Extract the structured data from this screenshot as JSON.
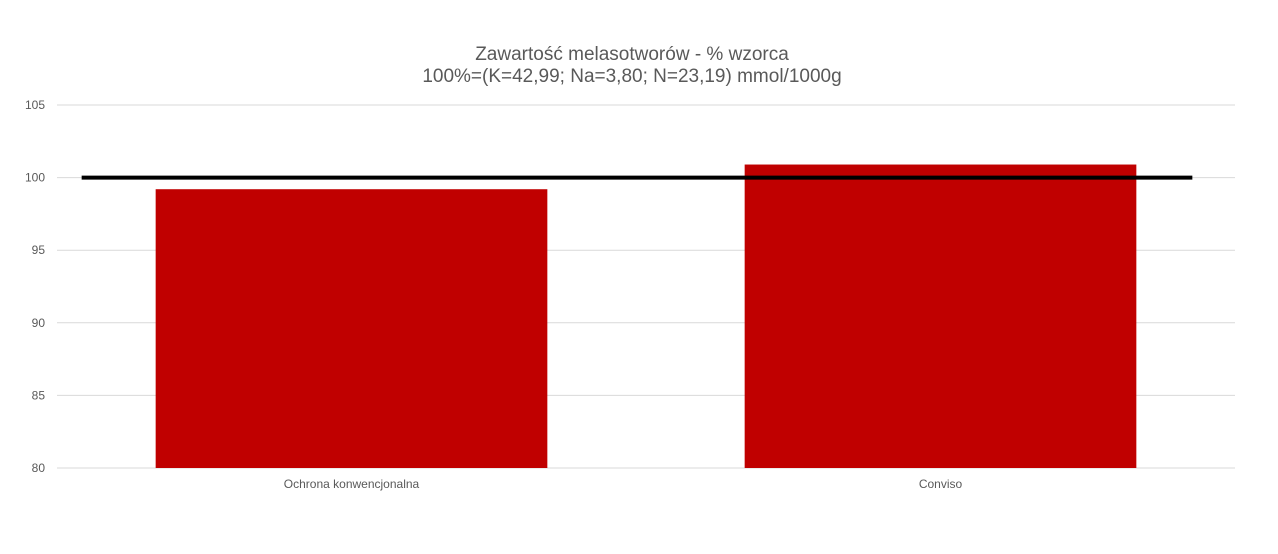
{
  "chart_data": {
    "type": "bar",
    "title": "Zawartość melasotworów - % wzorca",
    "subtitle": "100%=(K=42,99; Na=3,80; N=23,19) mmol/1000g",
    "categories": [
      "Ochrona konwencjonalna",
      "Conviso"
    ],
    "values": [
      99.2,
      100.9
    ],
    "ylim": [
      80,
      105
    ],
    "yticks": [
      80,
      85,
      90,
      95,
      100,
      105
    ],
    "reference_line": 100,
    "grid": true,
    "legend": "none",
    "colors": {
      "bar": "#c00000",
      "reference_line": "#000000",
      "grid": "#d9d9d9",
      "text": "#595959"
    }
  }
}
